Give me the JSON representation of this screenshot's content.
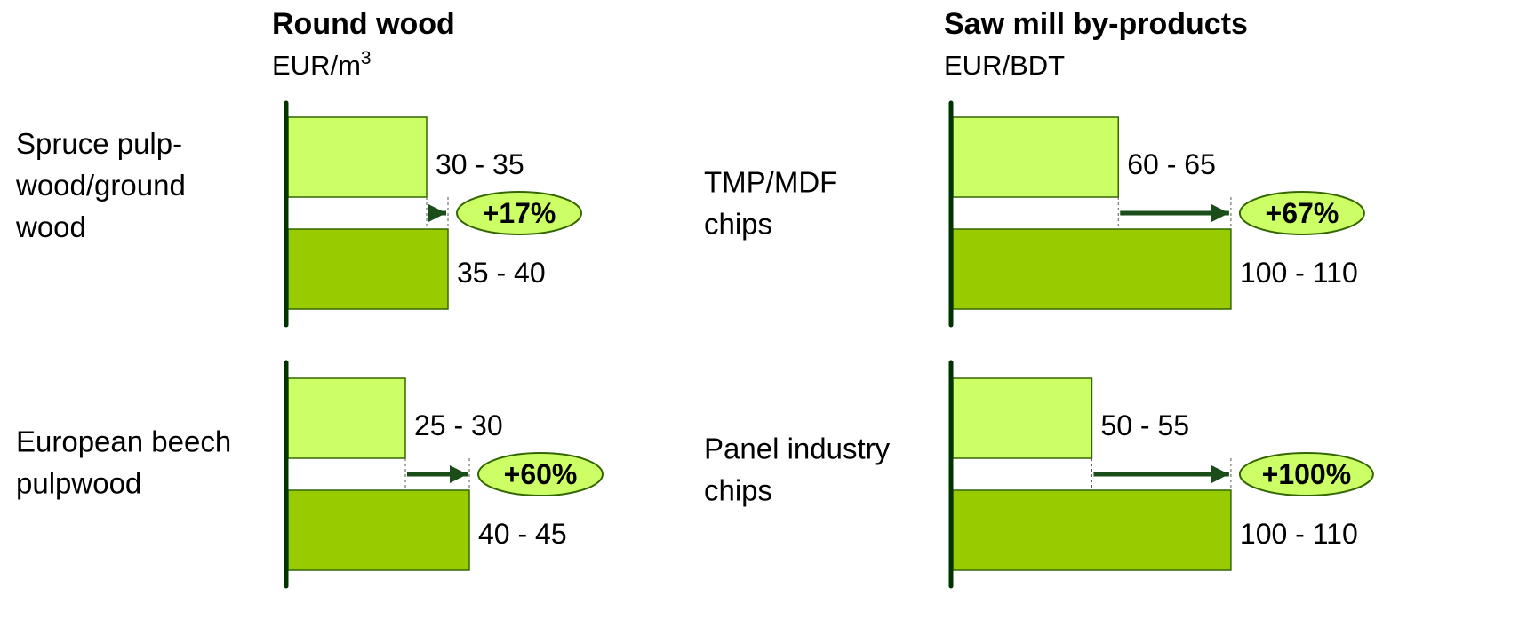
{
  "colors": {
    "before_fill": "#ccff66",
    "after_fill": "#99cc00",
    "bar_stroke": "#336600",
    "axis": "#003300",
    "arrow": "#1a4d1a",
    "ellipse_fill": "#ccff66",
    "ellipse_stroke": "#336600"
  },
  "chart_data": [
    {
      "type": "bar",
      "title": "Round wood",
      "unit": "EUR/m",
      "unit_sup": "3",
      "items": [
        {
          "category": "Spruce pulp-wood/ground wood",
          "category_lines": [
            "Spruce pulp-",
            "wood/ground",
            "wood"
          ],
          "before_label": "30 - 35",
          "after_label": "35 - 40",
          "before_value": 32.5,
          "after_value": 37.5,
          "change_label": "+17%"
        },
        {
          "category": "European beech pulpwood",
          "category_lines": [
            "European beech",
            "pulpwood"
          ],
          "before_label": "25 - 30",
          "after_label": "40 - 45",
          "before_value": 27.5,
          "after_value": 42.5,
          "change_label": "+60%"
        }
      ]
    },
    {
      "type": "bar",
      "title": "Saw mill by-products",
      "unit": "EUR/BDT",
      "unit_sup": "",
      "items": [
        {
          "category": "TMP/MDF chips",
          "category_lines": [
            "TMP/MDF",
            "chips"
          ],
          "before_label": "60 - 65",
          "after_label": "100 - 110",
          "before_value": 62.5,
          "after_value": 105,
          "change_label": "+67%"
        },
        {
          "category": "Panel industry chips",
          "category_lines": [
            "Panel industry",
            "chips"
          ],
          "before_label": "50 - 55",
          "after_label": "100 - 110",
          "before_value": 52.5,
          "after_value": 105,
          "change_label": "+100%"
        }
      ]
    }
  ]
}
